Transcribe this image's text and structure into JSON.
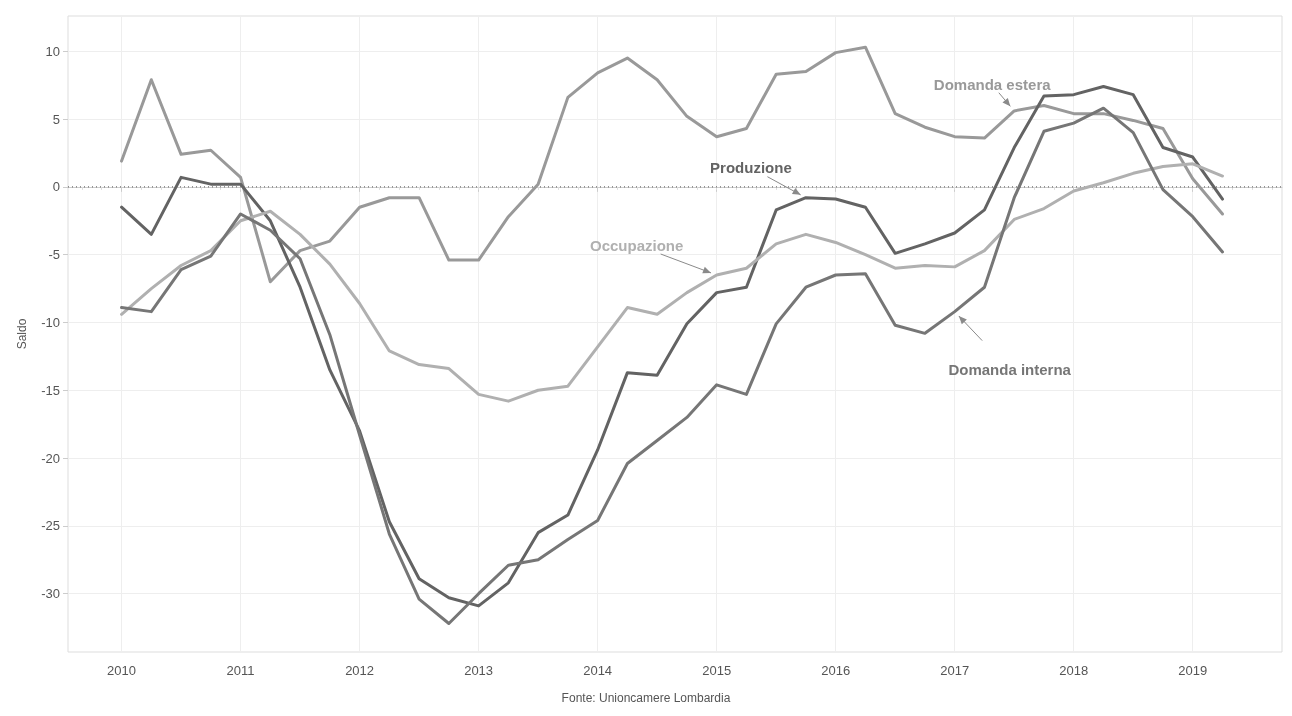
{
  "chart_data": {
    "type": "line",
    "ylabel": "Saldo",
    "annotations": [
      "Fonte: Unioncamere Lombardia"
    ],
    "x": [
      2010,
      2010.25,
      2010.5,
      2010.75,
      2011,
      2011.25,
      2011.5,
      2011.75,
      2012,
      2012.25,
      2012.5,
      2012.75,
      2013,
      2013.25,
      2013.5,
      2013.75,
      2014,
      2014.25,
      2014.5,
      2014.75,
      2015,
      2015.25,
      2015.5,
      2015.75,
      2016,
      2016.25,
      2016.5,
      2016.75,
      2017,
      2017.25,
      2017.5,
      2017.75,
      2018,
      2018.25,
      2018.5,
      2018.75,
      2019,
      2019.25
    ],
    "series": [
      {
        "name": "Domanda estera",
        "color": "#999999",
        "values": [
          1.9,
          7.9,
          2.4,
          2.7,
          0.7,
          -7.0,
          -4.7,
          -4.0,
          -1.5,
          -0.8,
          -0.8,
          -5.4,
          -5.4,
          -2.2,
          0.2,
          6.6,
          8.4,
          9.5,
          7.9,
          5.2,
          3.7,
          4.3,
          8.3,
          8.5,
          9.9,
          10.3,
          5.4,
          4.4,
          3.7,
          3.6,
          5.6,
          6.0,
          5.4,
          5.4,
          4.9,
          4.3,
          0.6,
          -2.0
        ]
      },
      {
        "name": "Produzione",
        "color": "#636363",
        "values": [
          -1.5,
          -3.5,
          0.7,
          0.2,
          0.2,
          -2.5,
          -7.4,
          -13.5,
          -18.0,
          -24.7,
          -28.9,
          -30.3,
          -30.9,
          -29.2,
          -25.5,
          -24.2,
          -19.4,
          -13.7,
          -13.9,
          -10.1,
          -7.8,
          -7.4,
          -1.7,
          -0.8,
          -0.9,
          -1.5,
          -4.9,
          -4.2,
          -3.4,
          -1.7,
          2.9,
          6.7,
          6.8,
          7.4,
          6.8,
          2.9,
          2.2,
          -0.9
        ]
      },
      {
        "name": "Occupazione",
        "color": "#b0b0b0",
        "values": [
          -9.4,
          -7.5,
          -5.8,
          -4.7,
          -2.5,
          -1.8,
          -3.5,
          -5.7,
          -8.6,
          -12.1,
          -13.1,
          -13.4,
          -15.3,
          -15.8,
          -15.0,
          -14.7,
          -11.8,
          -8.9,
          -9.4,
          -7.8,
          -6.5,
          -6.0,
          -4.2,
          -3.5,
          -4.1,
          -5.0,
          -6.0,
          -5.8,
          -5.9,
          -4.7,
          -2.4,
          -1.6,
          -0.3,
          0.3,
          1.0,
          1.5,
          1.7,
          0.8
        ]
      },
      {
        "name": "Domanda interna",
        "color": "#767676",
        "values": [
          -8.9,
          -9.2,
          -6.1,
          -5.1,
          -2.0,
          -3.2,
          -5.3,
          -10.9,
          -18.3,
          -25.6,
          -30.4,
          -32.2,
          -30.0,
          -27.9,
          -27.5,
          -26.0,
          -24.6,
          -20.4,
          -18.7,
          -17.0,
          -14.6,
          -15.3,
          -10.1,
          -7.4,
          -6.5,
          -6.4,
          -10.2,
          -10.8,
          -9.2,
          -7.4,
          -0.8,
          4.1,
          4.7,
          5.8,
          4.0,
          -0.2,
          -2.2,
          -4.8
        ]
      }
    ],
    "xlim": [
      2009.55,
      2019.75
    ],
    "xticks": [
      2010,
      2011,
      2012,
      2013,
      2014,
      2015,
      2016,
      2017,
      2018,
      2019
    ],
    "ylim": [
      -34.3,
      12.6
    ],
    "yticks": [
      -30,
      -25,
      -20,
      -15,
      -10,
      -5,
      0,
      5,
      10
    ],
    "ref_lines": [
      {
        "axis": "y",
        "value": 0,
        "line_style": "dotted"
      }
    ],
    "grid": true,
    "legend": false,
    "marker": "none",
    "line_style": "solid"
  }
}
